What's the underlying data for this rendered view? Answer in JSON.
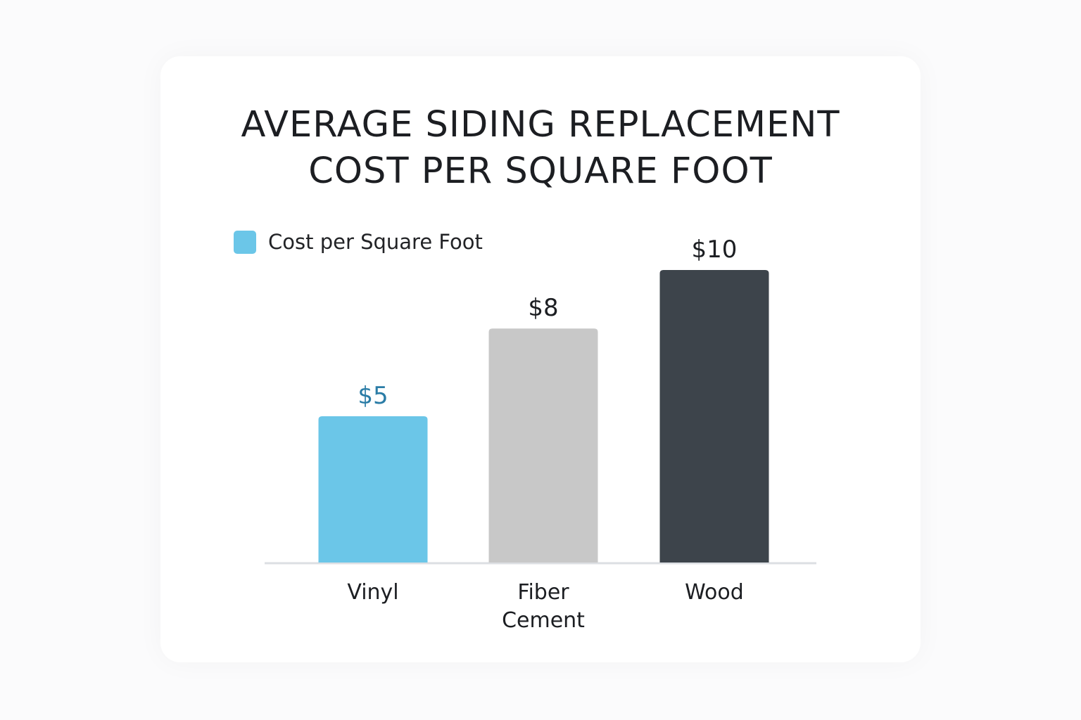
{
  "chart_data": {
    "type": "bar",
    "title": "AVERAGE SIDING REPLACEMENT\nCOST PER SQUARE FOOT",
    "legend": {
      "label": "Cost per Square Foot",
      "color": "#6bc6e8",
      "placement": "top-left"
    },
    "categories": [
      [
        "Vinyl"
      ],
      [
        "Fiber",
        "Cement"
      ],
      [
        "Wood"
      ]
    ],
    "values": [
      5,
      8,
      10
    ],
    "value_labels": [
      "$5",
      "$8",
      "$10"
    ],
    "bar_colors": [
      "#6bc6e8",
      "#c8c8c8",
      "#3d444b"
    ],
    "value_label_colors": [
      "#2a7ca6",
      "#1c1e22",
      "#1c1e22"
    ],
    "baseline_color": "#dcdfe3",
    "ylim": [
      0,
      10
    ],
    "grid": false,
    "xlabel": "",
    "ylabel": ""
  }
}
